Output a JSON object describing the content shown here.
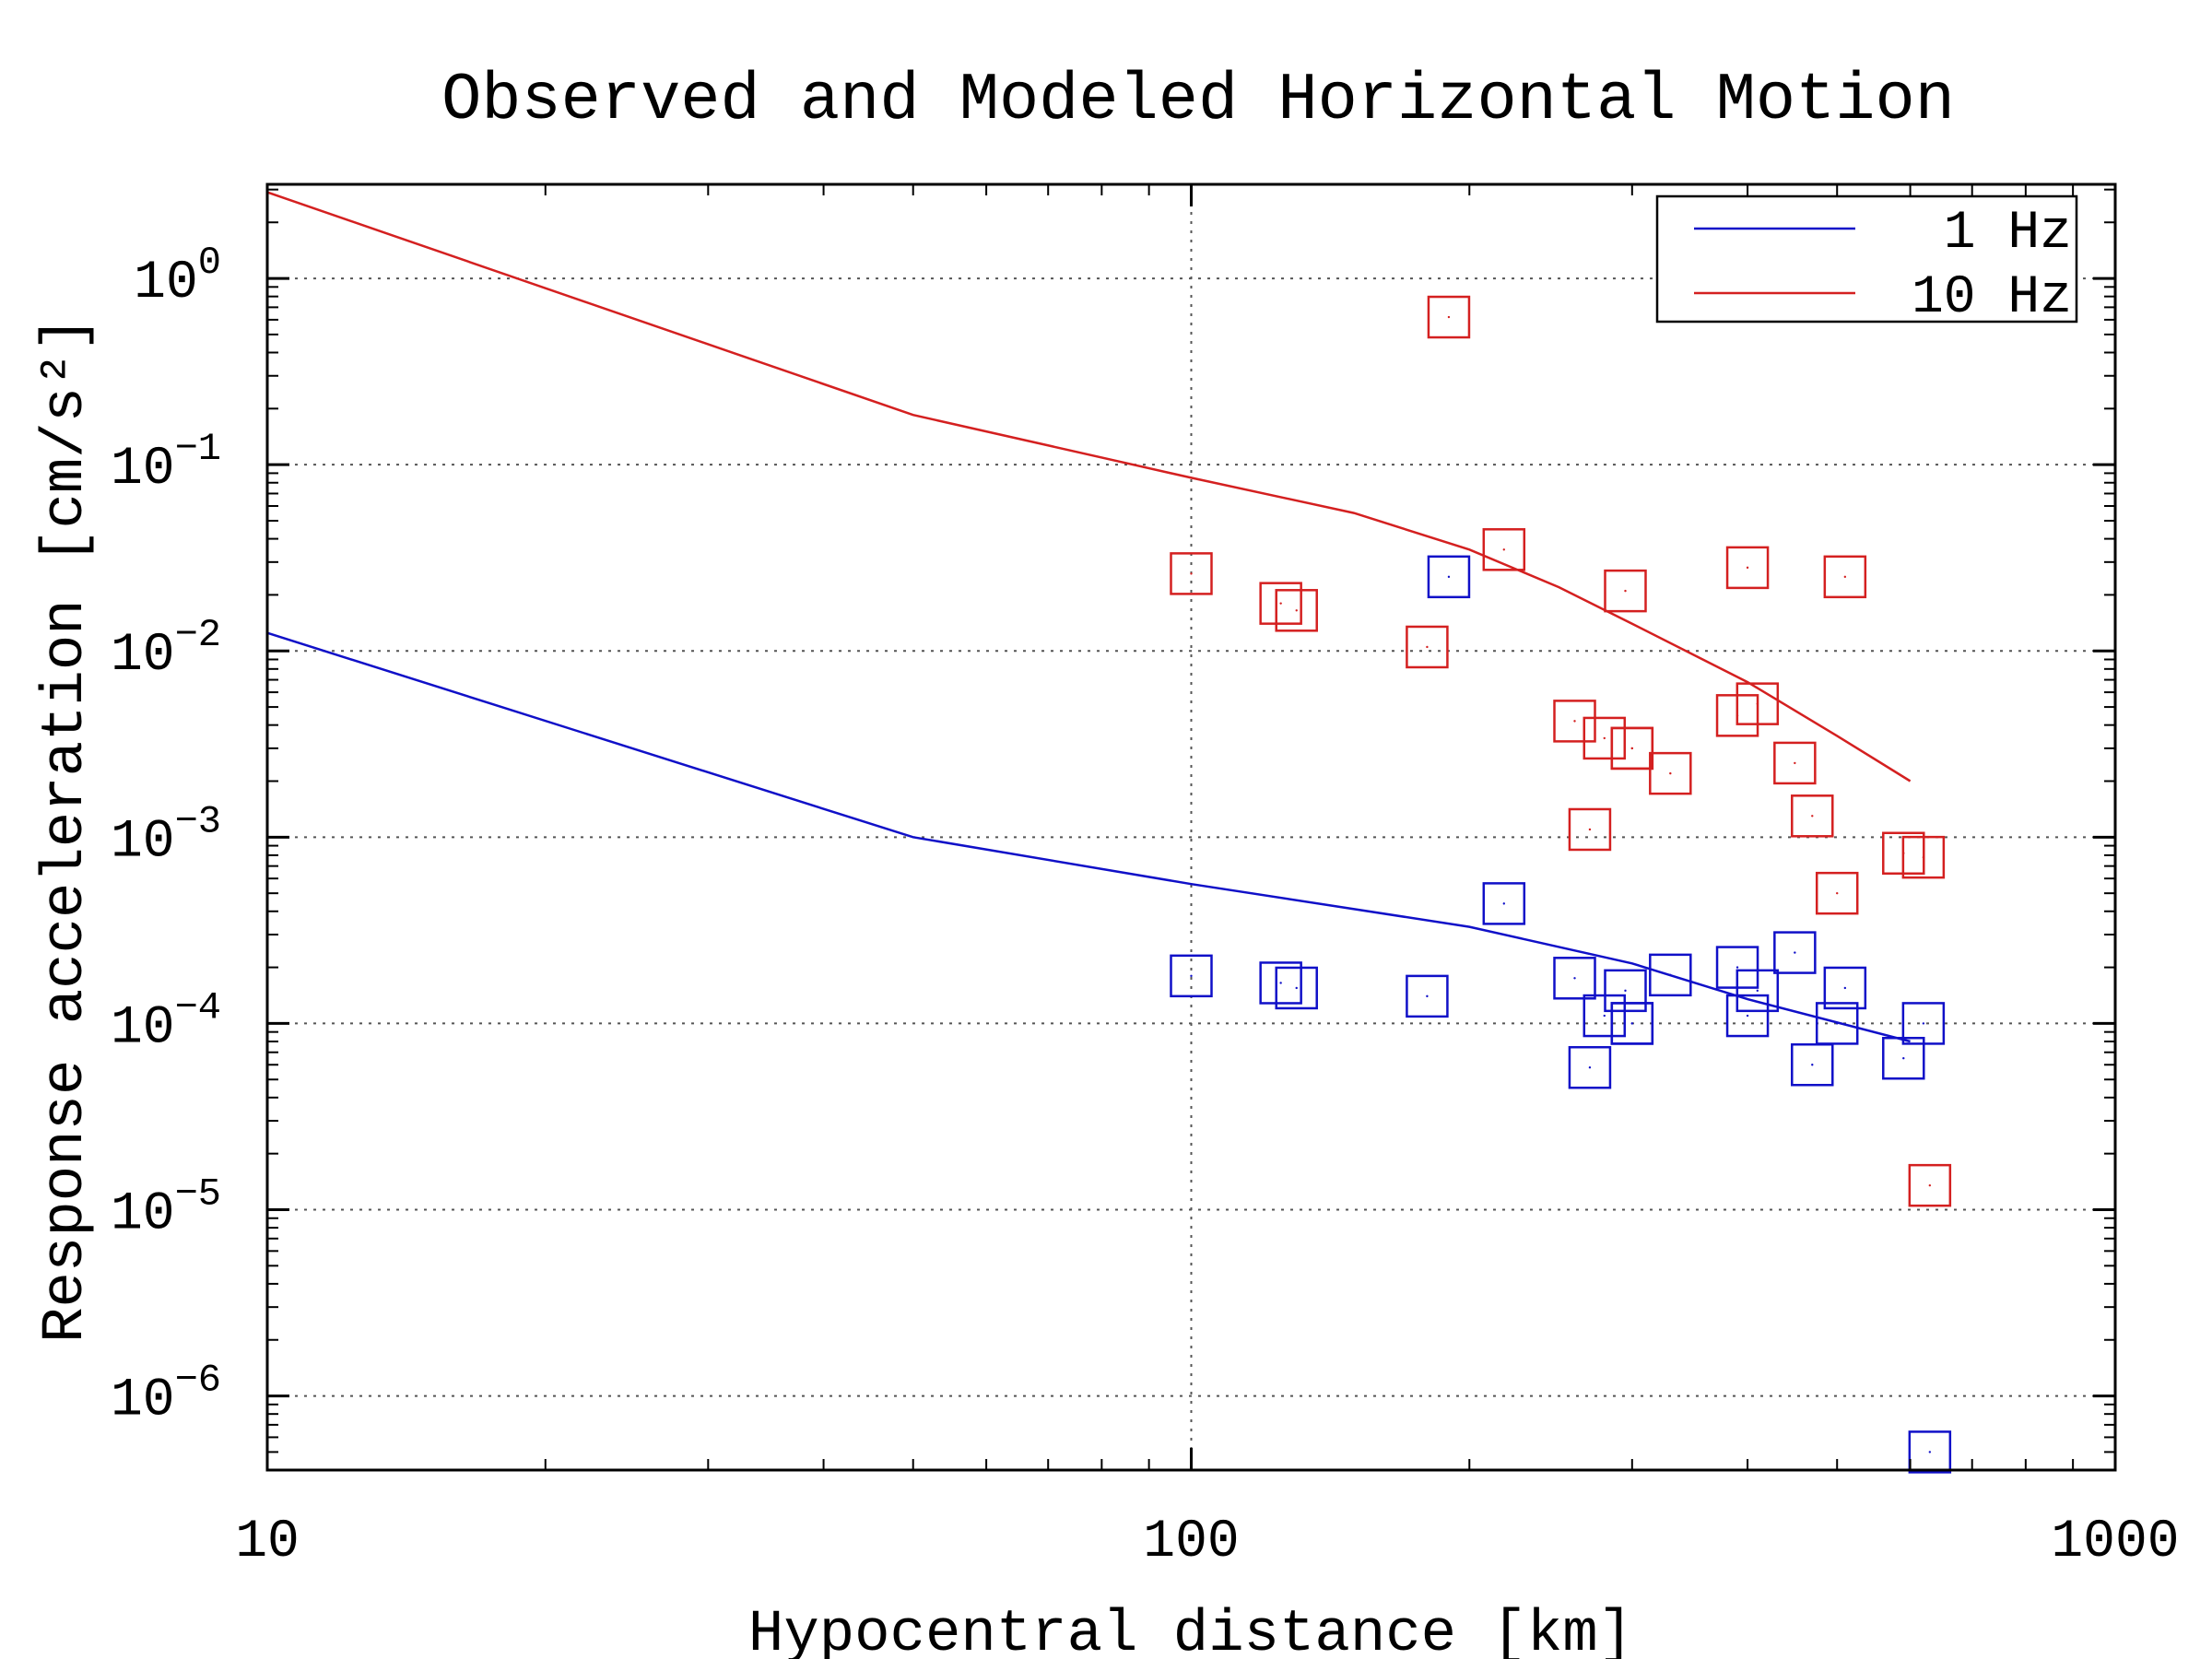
{
  "chart_data": {
    "type": "scatter",
    "title": "Observed and Modeled Horizontal Motion",
    "xlabel": "Hypocentral distance [km]",
    "ylabel": "Response acceleration [cm/s²]",
    "xscale": "log",
    "yscale": "log",
    "xlim": [
      10,
      1000
    ],
    "ylim": [
      4e-07,
      3.2
    ],
    "grid": true,
    "legend_position": "top-right",
    "x_ticks": [
      {
        "value": 10,
        "label": "10"
      },
      {
        "value": 100,
        "label": "100"
      },
      {
        "value": 1000,
        "label": "1000"
      }
    ],
    "y_ticks": [
      {
        "value": 1,
        "base": "10",
        "exp": "0"
      },
      {
        "value": 0.1,
        "base": "10",
        "exp": "−1"
      },
      {
        "value": 0.01,
        "base": "10",
        "exp": "−2"
      },
      {
        "value": 0.001,
        "base": "10",
        "exp": "−3"
      },
      {
        "value": 0.0001,
        "base": "10",
        "exp": "−4"
      },
      {
        "value": 1e-05,
        "base": "10",
        "exp": "−5"
      },
      {
        "value": 1e-06,
        "base": "10",
        "exp": "−6"
      }
    ],
    "series": [
      {
        "name": "1 Hz",
        "color": "#1010c8",
        "model_line": {
          "x": [
            10,
            50,
            100,
            200,
            300,
            400,
            600
          ],
          "y": [
            0.0125,
            0.001,
            0.00056,
            0.00033,
            0.00021,
            0.000135,
            8e-05
          ]
        },
        "observed": {
          "x": [
            100,
            125,
            130,
            180,
            190,
            218,
            260,
            270,
            280,
            295,
            300,
            300,
            330,
            390,
            400,
            410,
            450,
            470,
            500,
            510,
            590,
            620,
            630
          ],
          "y": [
            0.00018,
            0.000165,
            0.000155,
            0.00014,
            0.025,
            0.00044,
            0.000175,
            5.8e-05,
            0.00011,
            0.00015,
            0.0001,
            0.0001,
            0.000182,
            0.0002,
            0.00011,
            0.00015,
            0.00024,
            6e-05,
            0.0001,
            0.000155,
            6.5e-05,
            0.0001,
            5e-07
          ]
        }
      },
      {
        "name": "10 Hz",
        "color": "#d42020",
        "model_line": {
          "x": [
            10,
            50,
            100,
            150,
            200,
            250,
            300,
            400,
            500,
            600
          ],
          "y": [
            2.9,
            0.185,
            0.085,
            0.055,
            0.035,
            0.022,
            0.014,
            0.0068,
            0.0035,
            0.002
          ]
        },
        "observed": {
          "x": [
            100,
            125,
            130,
            180,
            190,
            218,
            260,
            270,
            280,
            295,
            300,
            300,
            330,
            390,
            400,
            410,
            450,
            470,
            500,
            510,
            590,
            620,
            630
          ],
          "y": [
            0.026,
            0.018,
            0.0165,
            0.0105,
            0.62,
            0.035,
            0.0042,
            0.0011,
            0.0034,
            0.021,
            0.003,
            0.003,
            0.0022,
            0.0045,
            0.028,
            0.0052,
            0.0025,
            0.0013,
            0.0005,
            0.025,
            0.00082,
            0.00078,
            1.35e-05
          ]
        }
      }
    ]
  }
}
